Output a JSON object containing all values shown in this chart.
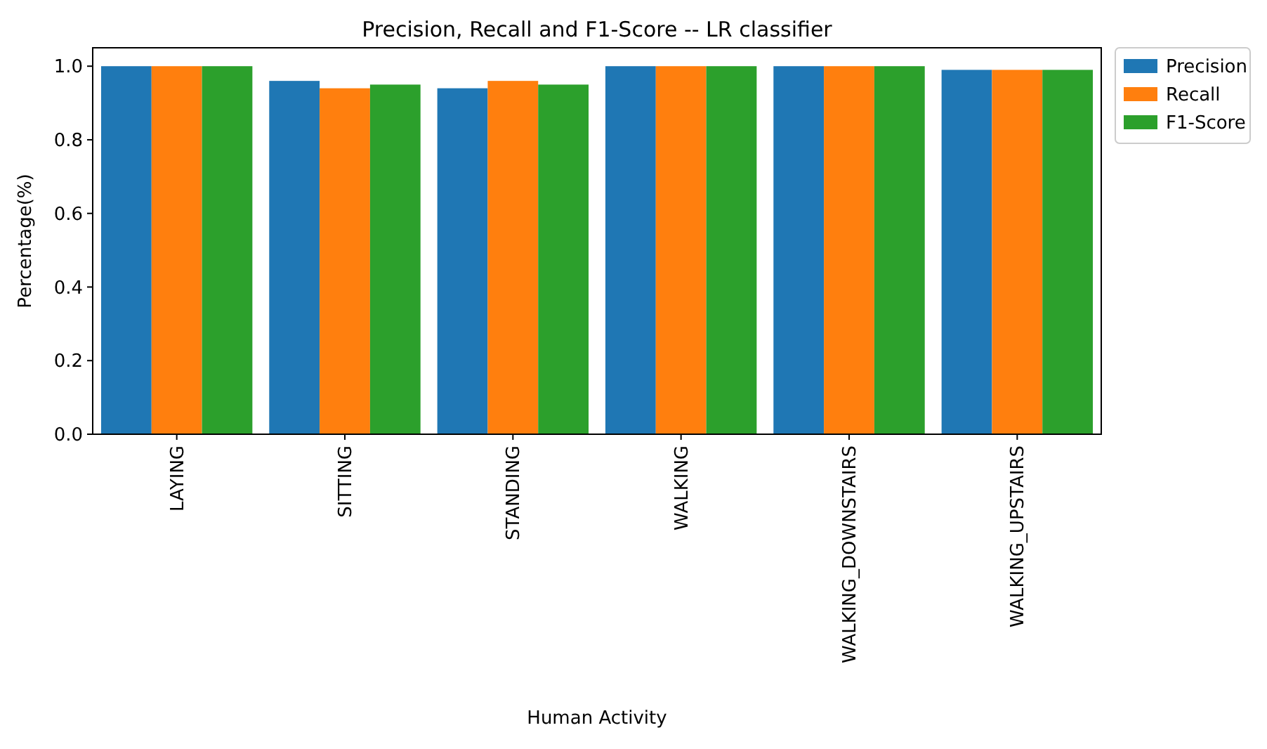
{
  "chart_data": {
    "type": "bar",
    "title": "Precision, Recall and F1-Score -- LR classifier",
    "xlabel": "Human Activity",
    "ylabel": "Percentage(%)",
    "categories": [
      "LAYING",
      "SITTING",
      "STANDING",
      "WALKING",
      "WALKING_DOWNSTAIRS",
      "WALKING_UPSTAIRS"
    ],
    "series": [
      {
        "name": "Precision",
        "color": "#1f77b4",
        "values": [
          1.0,
          0.96,
          0.94,
          1.0,
          1.0,
          0.99
        ]
      },
      {
        "name": "Recall",
        "color": "#ff7f0e",
        "values": [
          1.0,
          0.94,
          0.96,
          1.0,
          1.0,
          0.99
        ]
      },
      {
        "name": "F1-Score",
        "color": "#2ca02c",
        "values": [
          1.0,
          0.95,
          0.95,
          1.0,
          1.0,
          0.99
        ]
      }
    ],
    "ylim": [
      0,
      1.05
    ],
    "yticks": [
      {
        "value": 0,
        "label": "0.0"
      },
      {
        "value": 0.2,
        "label": "0.2"
      },
      {
        "value": 0.4,
        "label": "0.4"
      },
      {
        "value": 0.6,
        "label": "0.6"
      },
      {
        "value": 0.8,
        "label": "0.8"
      },
      {
        "value": 1.0,
        "label": "1.0"
      }
    ],
    "legend": "right",
    "grid": false
  }
}
